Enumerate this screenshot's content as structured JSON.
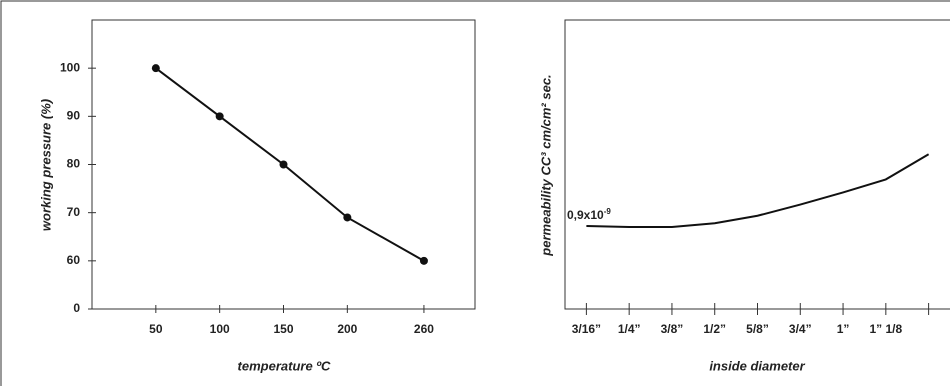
{
  "chart_data": [
    {
      "type": "line",
      "x_label": "temperature ºC",
      "y_label": "working pressure (%)",
      "x": [
        50,
        100,
        150,
        200,
        260
      ],
      "values": [
        100,
        90,
        80,
        69,
        60
      ],
      "color": "#111",
      "xlim": [
        0,
        300
      ],
      "xticks": [
        50,
        100,
        150,
        200,
        260
      ],
      "ylim": [
        0,
        110
      ],
      "yticks": [
        0,
        60,
        70,
        80,
        90,
        100
      ]
    },
    {
      "type": "line",
      "x_label": "inside diameter",
      "y_label": "permeability CC³ cm/cm² sec.",
      "annotation": {
        "text": "0,9x10",
        "sup": "-9"
      },
      "categories": [
        "3/16”",
        "1/4”",
        "3/8”",
        "1/2”",
        "5/8”",
        "3/4”",
        "1”",
        "1” 1/8",
        null
      ],
      "values": [
        0.89,
        0.88,
        0.88,
        0.92,
        1.0,
        1.12,
        1.25,
        1.39,
        1.66
      ],
      "color": "#111",
      "ylim": [
        0,
        3.1
      ]
    }
  ]
}
